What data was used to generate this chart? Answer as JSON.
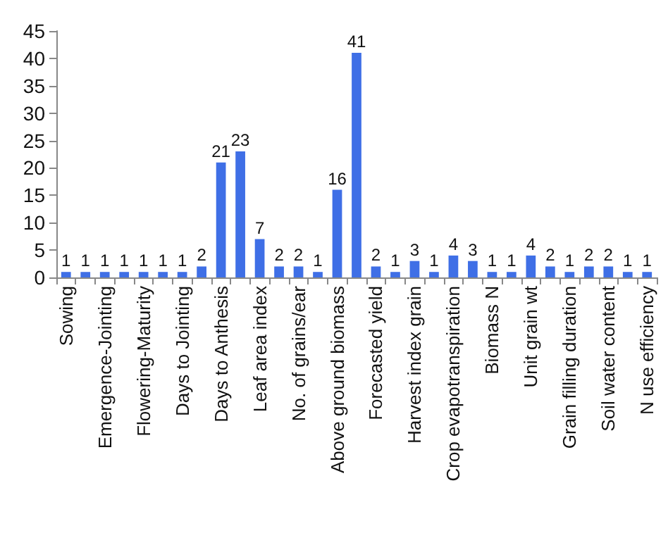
{
  "chart_data": {
    "type": "bar",
    "categories": [
      "Sowing",
      null,
      "Emergence-Jointing",
      null,
      "Flowering-Maturity",
      null,
      "Days to Jointing",
      null,
      "Days to Anthesis",
      null,
      "Leaf area index",
      null,
      "No. of grains/ear",
      null,
      "Above ground biomass",
      null,
      "Forecasted yield",
      null,
      "Harvest index grain",
      null,
      "Crop evapotranspiration",
      null,
      "Biomass N",
      null,
      "Unit grain wt",
      null,
      "Grain filling duration",
      null,
      "Soil water content",
      null,
      "N use efficiency"
    ],
    "values": [
      1,
      1,
      1,
      1,
      1,
      1,
      1,
      2,
      21,
      23,
      7,
      2,
      2,
      1,
      16,
      41,
      2,
      1,
      3,
      1,
      4,
      3,
      1,
      1,
      4,
      2,
      1,
      2,
      2,
      1,
      1
    ],
    "color": "#3f6fe6",
    "ylim": [
      0,
      45
    ],
    "yticks": [
      0,
      5,
      10,
      15,
      20,
      25,
      30,
      35,
      40,
      45
    ],
    "data_labels": true,
    "grid": false
  }
}
